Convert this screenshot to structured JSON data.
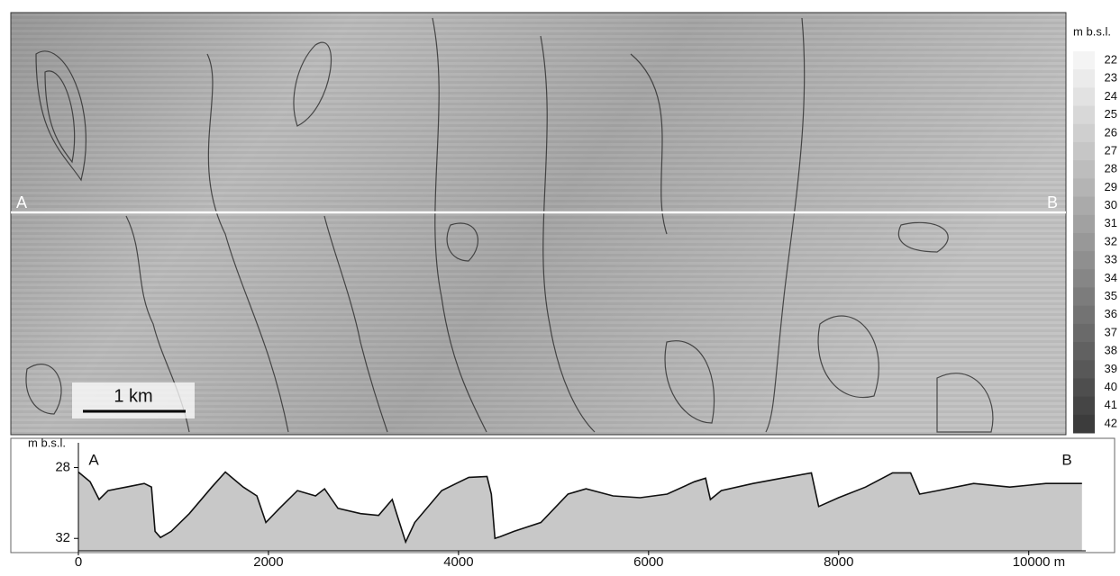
{
  "map": {
    "section_start": "A",
    "section_end": "B",
    "scale_bar": "1 km"
  },
  "colorbar": {
    "title": "m b.s.l.",
    "ticks": [
      22,
      23,
      24,
      25,
      26,
      27,
      28,
      29,
      30,
      31,
      32,
      33,
      34,
      35,
      36,
      37,
      38,
      39,
      40,
      41,
      42
    ],
    "colors": [
      "#f4f4f4",
      "#3c3c3c"
    ]
  },
  "chart_data": {
    "type": "area",
    "y_label": "m b.s.l.",
    "start_label": "A",
    "end_label": "B",
    "line_color": "#111111",
    "fill_color": "#c8c8c8",
    "x": [
      0,
      123,
      218,
      313,
      503,
      693,
      769,
      807,
      864,
      977,
      1167,
      1404,
      1546,
      1735,
      1878,
      1973,
      2116,
      2305,
      2495,
      2590,
      2732,
      2970,
      3159,
      3302,
      3349,
      3444,
      3539,
      3823,
      4108,
      4300,
      4345,
      4383,
      4440,
      4583,
      4867,
      5152,
      5342,
      5626,
      5911,
      6195,
      6480,
      6600,
      6650,
      6765,
      7100,
      7400,
      7713,
      7790,
      7998,
      8283,
      8567,
      8757,
      8852,
      9042,
      9421,
      9801,
      10180,
      10560
    ],
    "values": [
      28.25,
      28.8,
      29.8,
      29.3,
      29.1,
      28.9,
      29.1,
      31.6,
      31.95,
      31.6,
      30.6,
      29.1,
      28.25,
      29.1,
      29.6,
      31.1,
      30.3,
      29.3,
      29.6,
      29.2,
      30.3,
      30.6,
      30.7,
      29.8,
      30.6,
      32.2,
      31.1,
      29.3,
      28.55,
      28.5,
      29.5,
      32.0,
      31.9,
      31.6,
      31.1,
      29.5,
      29.2,
      29.6,
      29.7,
      29.5,
      28.8,
      28.6,
      29.8,
      29.3,
      28.9,
      28.6,
      28.3,
      30.2,
      29.7,
      29.1,
      28.3,
      28.3,
      29.5,
      29.3,
      28.9,
      29.1,
      28.9,
      28.9
    ],
    "xlim": [
      0,
      10600
    ],
    "ylim": [
      32.7,
      26.6
    ],
    "xticks": [
      0,
      2000,
      4000,
      6000,
      8000,
      {
        "value": 10000,
        "label": "10000 m"
      }
    ],
    "yticks": [
      28,
      32
    ]
  }
}
